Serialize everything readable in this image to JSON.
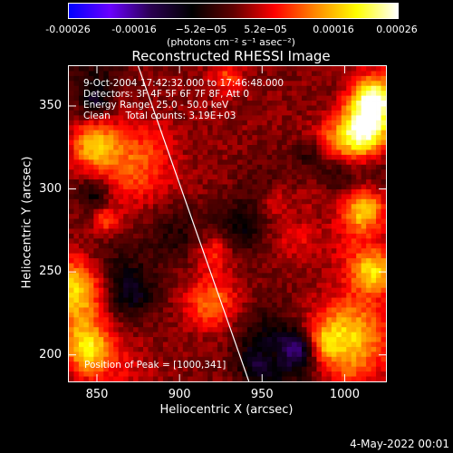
{
  "colorbar": {
    "ticks": [
      "-0.00026",
      "-0.00016",
      "−5.2e−05",
      "5.2e−05",
      "0.00016",
      "0.00026"
    ],
    "units": "(photons cm⁻² s⁻¹ asec⁻²)",
    "colors": [
      "#0000ff",
      "#6a00ff",
      "#2a0050",
      "#000000",
      "#600000",
      "#ff0000",
      "#ff8800",
      "#ffff00",
      "#ffffff"
    ]
  },
  "chart_data": {
    "type": "heatmap",
    "title": "Reconstructed RHESSI Image",
    "xlabel": "Heliocentric X (arcsec)",
    "ylabel": "Heliocentric Y (arcsec)",
    "xlim": [
      833,
      1025
    ],
    "ylim": [
      184,
      374
    ],
    "xticks": [
      850,
      900,
      950,
      1000
    ],
    "yticks": [
      200,
      250,
      300,
      350
    ],
    "value_range": [
      -0.00026,
      0.00026
    ],
    "limb_line": [
      [
        875,
        374
      ],
      [
        942,
        184
      ]
    ],
    "annotations": [
      "9-Oct-2004 17:42:32.000 to 17:46:48.000",
      "Detectors: 3F 4F 5F 6F 7F 8F, Att 0",
      "Energy Range: 25.0 - 50.0 keV",
      "Clean     Total counts: 3.19E+03"
    ],
    "peak_label": "Position of Peak = [1000,341]",
    "peak": [
      1000,
      341
    ]
  },
  "footer": "4-May-2022 00:01"
}
